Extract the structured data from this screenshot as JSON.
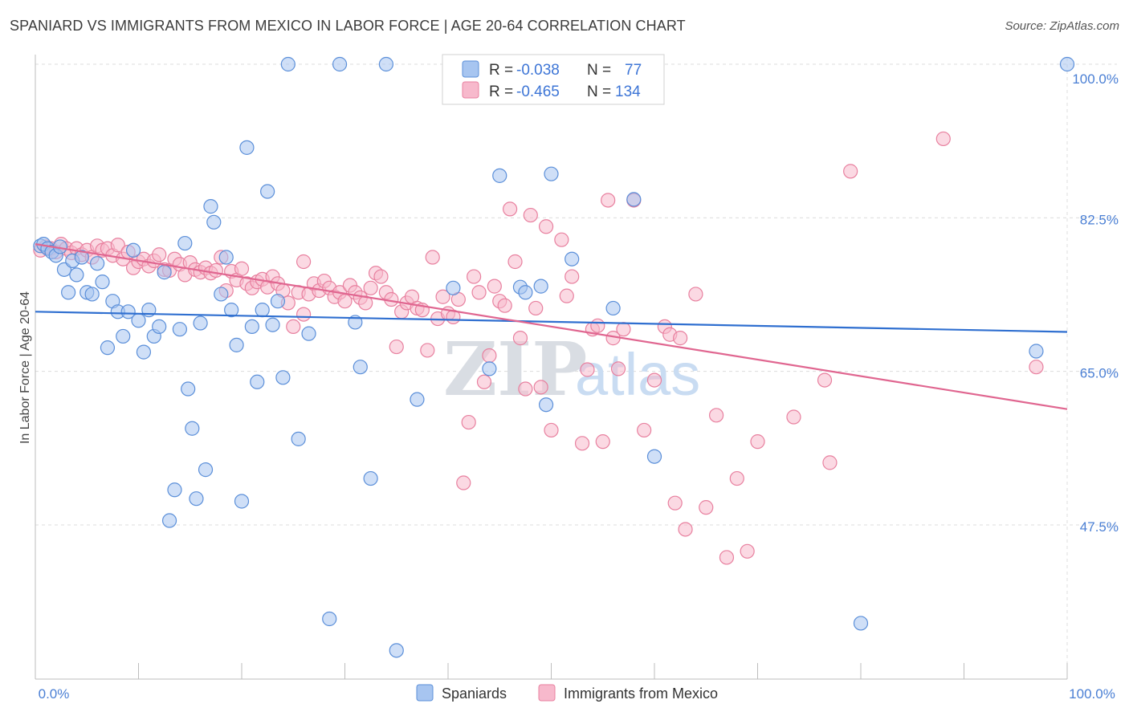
{
  "title": "SPANIARD VS IMMIGRANTS FROM MEXICO IN LABOR FORCE | AGE 20-64 CORRELATION CHART",
  "source": "Source: ZipAtlas.com",
  "watermark": {
    "zip": "ZIP",
    "atlas": "atlas"
  },
  "legend": {
    "rows": [
      {
        "r_label": "R =",
        "r_value": "-0.038",
        "n_label": "N =",
        "n_value": "77",
        "color": "#a7c5f0",
        "stroke": "#5b8fd9"
      },
      {
        "r_label": "R =",
        "r_value": "-0.465",
        "n_label": "N =",
        "n_value": "134",
        "color": "#f7b9cc",
        "stroke": "#e8809f"
      }
    ]
  },
  "bottom_legend": [
    {
      "label": "Spaniards",
      "color": "#a7c5f0",
      "stroke": "#5b8fd9"
    },
    {
      "label": "Immigrants from Mexico",
      "color": "#f7b9cc",
      "stroke": "#e8809f"
    }
  ],
  "chart_data": {
    "type": "scatter",
    "ylabel": "In Labor Force | Age 20-64",
    "xlabel": "",
    "xlim": [
      0,
      100
    ],
    "ylim": [
      29.5,
      101.5
    ],
    "x_tick_labels": [
      {
        "value": 0,
        "label": "0.0%"
      },
      {
        "value": 100,
        "label": "100.0%"
      }
    ],
    "x_minor_ticks": [
      10,
      20,
      30,
      40,
      50,
      60,
      70,
      80,
      90
    ],
    "y_ticks": [
      {
        "value": 100,
        "label": "100.0%"
      },
      {
        "value": 82.5,
        "label": "82.5%"
      },
      {
        "value": 65,
        "label": "65.0%"
      },
      {
        "value": 47.5,
        "label": "47.5%"
      }
    ],
    "grid": true,
    "series": [
      {
        "name": "Spaniards",
        "color": "#5b8fd9",
        "fill": "#a7c5f0",
        "trend": {
          "x": [
            0,
            100
          ],
          "y": [
            71.8,
            69.5
          ],
          "color": "#2f6fd0"
        },
        "points": [
          [
            0.5,
            79.3
          ],
          [
            0.8,
            79.5
          ],
          [
            1.2,
            79.0
          ],
          [
            1.6,
            78.6
          ],
          [
            2.0,
            78.2
          ],
          [
            2.4,
            79.2
          ],
          [
            2.8,
            76.6
          ],
          [
            3.2,
            74.0
          ],
          [
            3.6,
            77.6
          ],
          [
            4.0,
            76.0
          ],
          [
            4.5,
            78.0
          ],
          [
            5.0,
            74.0
          ],
          [
            5.5,
            73.8
          ],
          [
            6.0,
            77.3
          ],
          [
            6.5,
            75.2
          ],
          [
            7.0,
            67.7
          ],
          [
            7.5,
            73.0
          ],
          [
            8.0,
            71.8
          ],
          [
            8.5,
            69.0
          ],
          [
            9.0,
            71.8
          ],
          [
            9.5,
            78.8
          ],
          [
            10.0,
            70.8
          ],
          [
            10.5,
            67.2
          ],
          [
            11.0,
            72.0
          ],
          [
            11.5,
            69.0
          ],
          [
            12.0,
            70.1
          ],
          [
            12.5,
            76.3
          ],
          [
            13.0,
            48.0
          ],
          [
            13.5,
            51.5
          ],
          [
            14.0,
            69.8
          ],
          [
            14.5,
            79.6
          ],
          [
            14.8,
            63.0
          ],
          [
            15.2,
            58.5
          ],
          [
            15.6,
            50.5
          ],
          [
            16.0,
            70.5
          ],
          [
            16.5,
            53.8
          ],
          [
            17.0,
            83.8
          ],
          [
            17.3,
            82.0
          ],
          [
            18.0,
            73.8
          ],
          [
            18.5,
            78.0
          ],
          [
            19.0,
            72.0
          ],
          [
            19.5,
            68.0
          ],
          [
            20.0,
            50.2
          ],
          [
            20.5,
            90.5
          ],
          [
            21.0,
            70.1
          ],
          [
            21.5,
            63.8
          ],
          [
            22.0,
            72.0
          ],
          [
            22.5,
            85.5
          ],
          [
            23.0,
            70.3
          ],
          [
            23.5,
            73.0
          ],
          [
            24.0,
            64.3
          ],
          [
            24.5,
            100.0
          ],
          [
            25.5,
            57.3
          ],
          [
            26.5,
            69.3
          ],
          [
            28.5,
            36.8
          ],
          [
            29.5,
            100.0
          ],
          [
            31.0,
            70.6
          ],
          [
            31.5,
            65.5
          ],
          [
            32.5,
            52.8
          ],
          [
            34.0,
            100.0
          ],
          [
            35.0,
            33.2
          ],
          [
            37.0,
            61.8
          ],
          [
            40.5,
            74.5
          ],
          [
            44.0,
            65.3
          ],
          [
            45.0,
            87.3
          ],
          [
            47.0,
            74.6
          ],
          [
            47.5,
            74.0
          ],
          [
            49.0,
            74.7
          ],
          [
            49.5,
            61.2
          ],
          [
            50.0,
            87.5
          ],
          [
            52.0,
            77.8
          ],
          [
            56.0,
            72.2
          ],
          [
            58.0,
            84.6
          ],
          [
            60.0,
            55.3
          ],
          [
            80.0,
            36.3
          ],
          [
            97.0,
            67.3
          ],
          [
            100.0,
            100.0
          ]
        ]
      },
      {
        "name": "Immigrants from Mexico",
        "color": "#e8809f",
        "fill": "#f7b9cc",
        "trend": {
          "x": [
            0,
            100
          ],
          "y": [
            79.5,
            60.7
          ],
          "color": "#e06690"
        },
        "points": [
          [
            0.5,
            78.8
          ],
          [
            1.0,
            79.2
          ],
          [
            1.5,
            79.0
          ],
          [
            2.0,
            78.6
          ],
          [
            2.5,
            79.5
          ],
          [
            3.0,
            79.0
          ],
          [
            3.5,
            78.5
          ],
          [
            4.0,
            79.0
          ],
          [
            4.5,
            78.3
          ],
          [
            5.0,
            78.8
          ],
          [
            5.5,
            78.0
          ],
          [
            6.0,
            79.3
          ],
          [
            6.5,
            78.8
          ],
          [
            7.0,
            79.0
          ],
          [
            7.5,
            78.2
          ],
          [
            8.0,
            79.4
          ],
          [
            8.5,
            77.8
          ],
          [
            9.0,
            78.6
          ],
          [
            9.5,
            76.8
          ],
          [
            10.0,
            77.5
          ],
          [
            10.5,
            77.8
          ],
          [
            11.0,
            77.0
          ],
          [
            11.5,
            77.6
          ],
          [
            12.0,
            78.3
          ],
          [
            12.5,
            76.6
          ],
          [
            13.0,
            76.5
          ],
          [
            13.5,
            77.8
          ],
          [
            14.0,
            77.2
          ],
          [
            14.5,
            76.0
          ],
          [
            15.0,
            77.4
          ],
          [
            15.5,
            76.6
          ],
          [
            16.0,
            76.3
          ],
          [
            16.5,
            76.8
          ],
          [
            17.0,
            76.2
          ],
          [
            17.5,
            76.5
          ],
          [
            18.0,
            78.0
          ],
          [
            18.5,
            74.2
          ],
          [
            19.0,
            76.4
          ],
          [
            19.5,
            75.4
          ],
          [
            20.0,
            76.7
          ],
          [
            20.5,
            75.0
          ],
          [
            21.0,
            74.5
          ],
          [
            21.5,
            75.2
          ],
          [
            22.0,
            75.5
          ],
          [
            22.5,
            74.6
          ],
          [
            23.0,
            75.8
          ],
          [
            23.5,
            75.0
          ],
          [
            24.0,
            74.2
          ],
          [
            24.5,
            72.8
          ],
          [
            25.0,
            70.1
          ],
          [
            25.5,
            74.0
          ],
          [
            26.0,
            77.5
          ],
          [
            26.5,
            73.8
          ],
          [
            27.0,
            75.0
          ],
          [
            27.5,
            74.2
          ],
          [
            28.0,
            75.3
          ],
          [
            28.5,
            74.5
          ],
          [
            29.0,
            73.5
          ],
          [
            29.5,
            74.0
          ],
          [
            30.0,
            73.0
          ],
          [
            30.5,
            74.8
          ],
          [
            31.0,
            74.0
          ],
          [
            31.5,
            73.4
          ],
          [
            32.0,
            72.8
          ],
          [
            32.5,
            74.5
          ],
          [
            33.0,
            76.2
          ],
          [
            33.5,
            75.8
          ],
          [
            34.0,
            74.0
          ],
          [
            34.5,
            73.2
          ],
          [
            35.0,
            67.8
          ],
          [
            35.5,
            71.8
          ],
          [
            36.0,
            72.8
          ],
          [
            36.5,
            73.5
          ],
          [
            37.0,
            72.2
          ],
          [
            37.5,
            72.0
          ],
          [
            38.0,
            67.4
          ],
          [
            38.5,
            78.0
          ],
          [
            39.0,
            71.0
          ],
          [
            39.5,
            73.5
          ],
          [
            40.0,
            71.6
          ],
          [
            40.5,
            71.2
          ],
          [
            41.0,
            73.2
          ],
          [
            41.5,
            52.3
          ],
          [
            42.0,
            59.2
          ],
          [
            42.5,
            75.8
          ],
          [
            43.0,
            74.0
          ],
          [
            43.5,
            63.8
          ],
          [
            44.0,
            66.8
          ],
          [
            44.5,
            74.7
          ],
          [
            45.0,
            73.0
          ],
          [
            45.5,
            72.5
          ],
          [
            46.0,
            83.5
          ],
          [
            46.5,
            77.5
          ],
          [
            47.0,
            68.8
          ],
          [
            47.5,
            63.0
          ],
          [
            48.0,
            82.8
          ],
          [
            48.5,
            72.2
          ],
          [
            49.0,
            63.2
          ],
          [
            49.5,
            81.5
          ],
          [
            50.0,
            58.3
          ],
          [
            51.0,
            80.0
          ],
          [
            51.5,
            73.6
          ],
          [
            52.0,
            75.8
          ],
          [
            53.0,
            56.8
          ],
          [
            53.5,
            65.2
          ],
          [
            54.0,
            69.8
          ],
          [
            54.5,
            70.2
          ],
          [
            55.0,
            57.0
          ],
          [
            55.5,
            84.5
          ],
          [
            56.0,
            68.8
          ],
          [
            56.5,
            65.3
          ],
          [
            57.0,
            69.8
          ],
          [
            58.0,
            84.5
          ],
          [
            59.0,
            58.3
          ],
          [
            60.0,
            64.0
          ],
          [
            61.0,
            70.1
          ],
          [
            61.5,
            69.2
          ],
          [
            62.0,
            50.0
          ],
          [
            62.5,
            68.8
          ],
          [
            63.0,
            47.0
          ],
          [
            64.0,
            73.8
          ],
          [
            65.0,
            49.5
          ],
          [
            66.0,
            60.0
          ],
          [
            67.0,
            43.8
          ],
          [
            68.0,
            52.8
          ],
          [
            69.0,
            44.5
          ],
          [
            70.0,
            57.0
          ],
          [
            73.5,
            59.8
          ],
          [
            76.5,
            64.0
          ],
          [
            77.0,
            54.6
          ],
          [
            79.0,
            87.8
          ],
          [
            88.0,
            91.5
          ],
          [
            97.0,
            65.5
          ],
          [
            26.0,
            71.5
          ]
        ]
      }
    ]
  }
}
